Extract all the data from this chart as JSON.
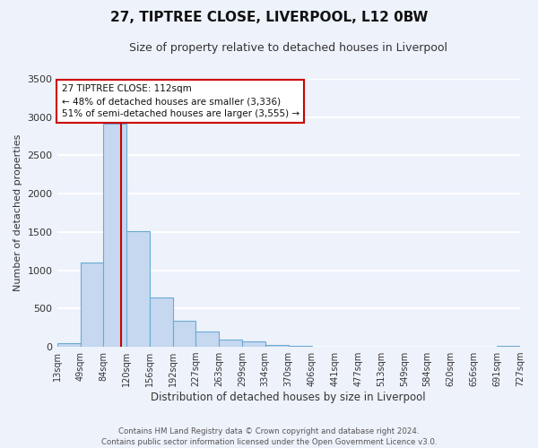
{
  "title": "27, TIPTREE CLOSE, LIVERPOOL, L12 0BW",
  "subtitle": "Size of property relative to detached houses in Liverpool",
  "xlabel": "Distribution of detached houses by size in Liverpool",
  "ylabel": "Number of detached properties",
  "bin_edges": [
    13,
    49,
    84,
    120,
    156,
    192,
    227,
    263,
    299,
    334,
    370,
    406,
    441,
    477,
    513,
    549,
    584,
    620,
    656,
    691,
    727
  ],
  "bar_heights": [
    50,
    1100,
    2920,
    1510,
    640,
    340,
    195,
    100,
    75,
    20,
    10,
    5,
    3,
    2,
    1,
    1,
    0,
    0,
    0,
    10
  ],
  "bar_color": "#c5d8f0",
  "bar_edgecolor": "#6aaad4",
  "property_value": 112,
  "vline_color": "#cc0000",
  "ylim": [
    0,
    3500
  ],
  "yticks": [
    0,
    500,
    1000,
    1500,
    2000,
    2500,
    3000,
    3500
  ],
  "annotation_text": "27 TIPTREE CLOSE: 112sqm\n← 48% of detached houses are smaller (3,336)\n51% of semi-detached houses are larger (3,555) →",
  "annotation_box_edgecolor": "#cc0000",
  "annotation_box_facecolor": "#ffffff",
  "footnote": "Contains HM Land Registry data © Crown copyright and database right 2024.\nContains public sector information licensed under the Open Government Licence v3.0.",
  "tick_labels": [
    "13sqm",
    "49sqm",
    "84sqm",
    "120sqm",
    "156sqm",
    "192sqm",
    "227sqm",
    "263sqm",
    "299sqm",
    "334sqm",
    "370sqm",
    "406sqm",
    "441sqm",
    "477sqm",
    "513sqm",
    "549sqm",
    "584sqm",
    "620sqm",
    "656sqm",
    "691sqm",
    "727sqm"
  ],
  "background_color": "#eef2fb",
  "grid_color": "#ffffff",
  "title_fontsize": 11,
  "subtitle_fontsize": 9
}
